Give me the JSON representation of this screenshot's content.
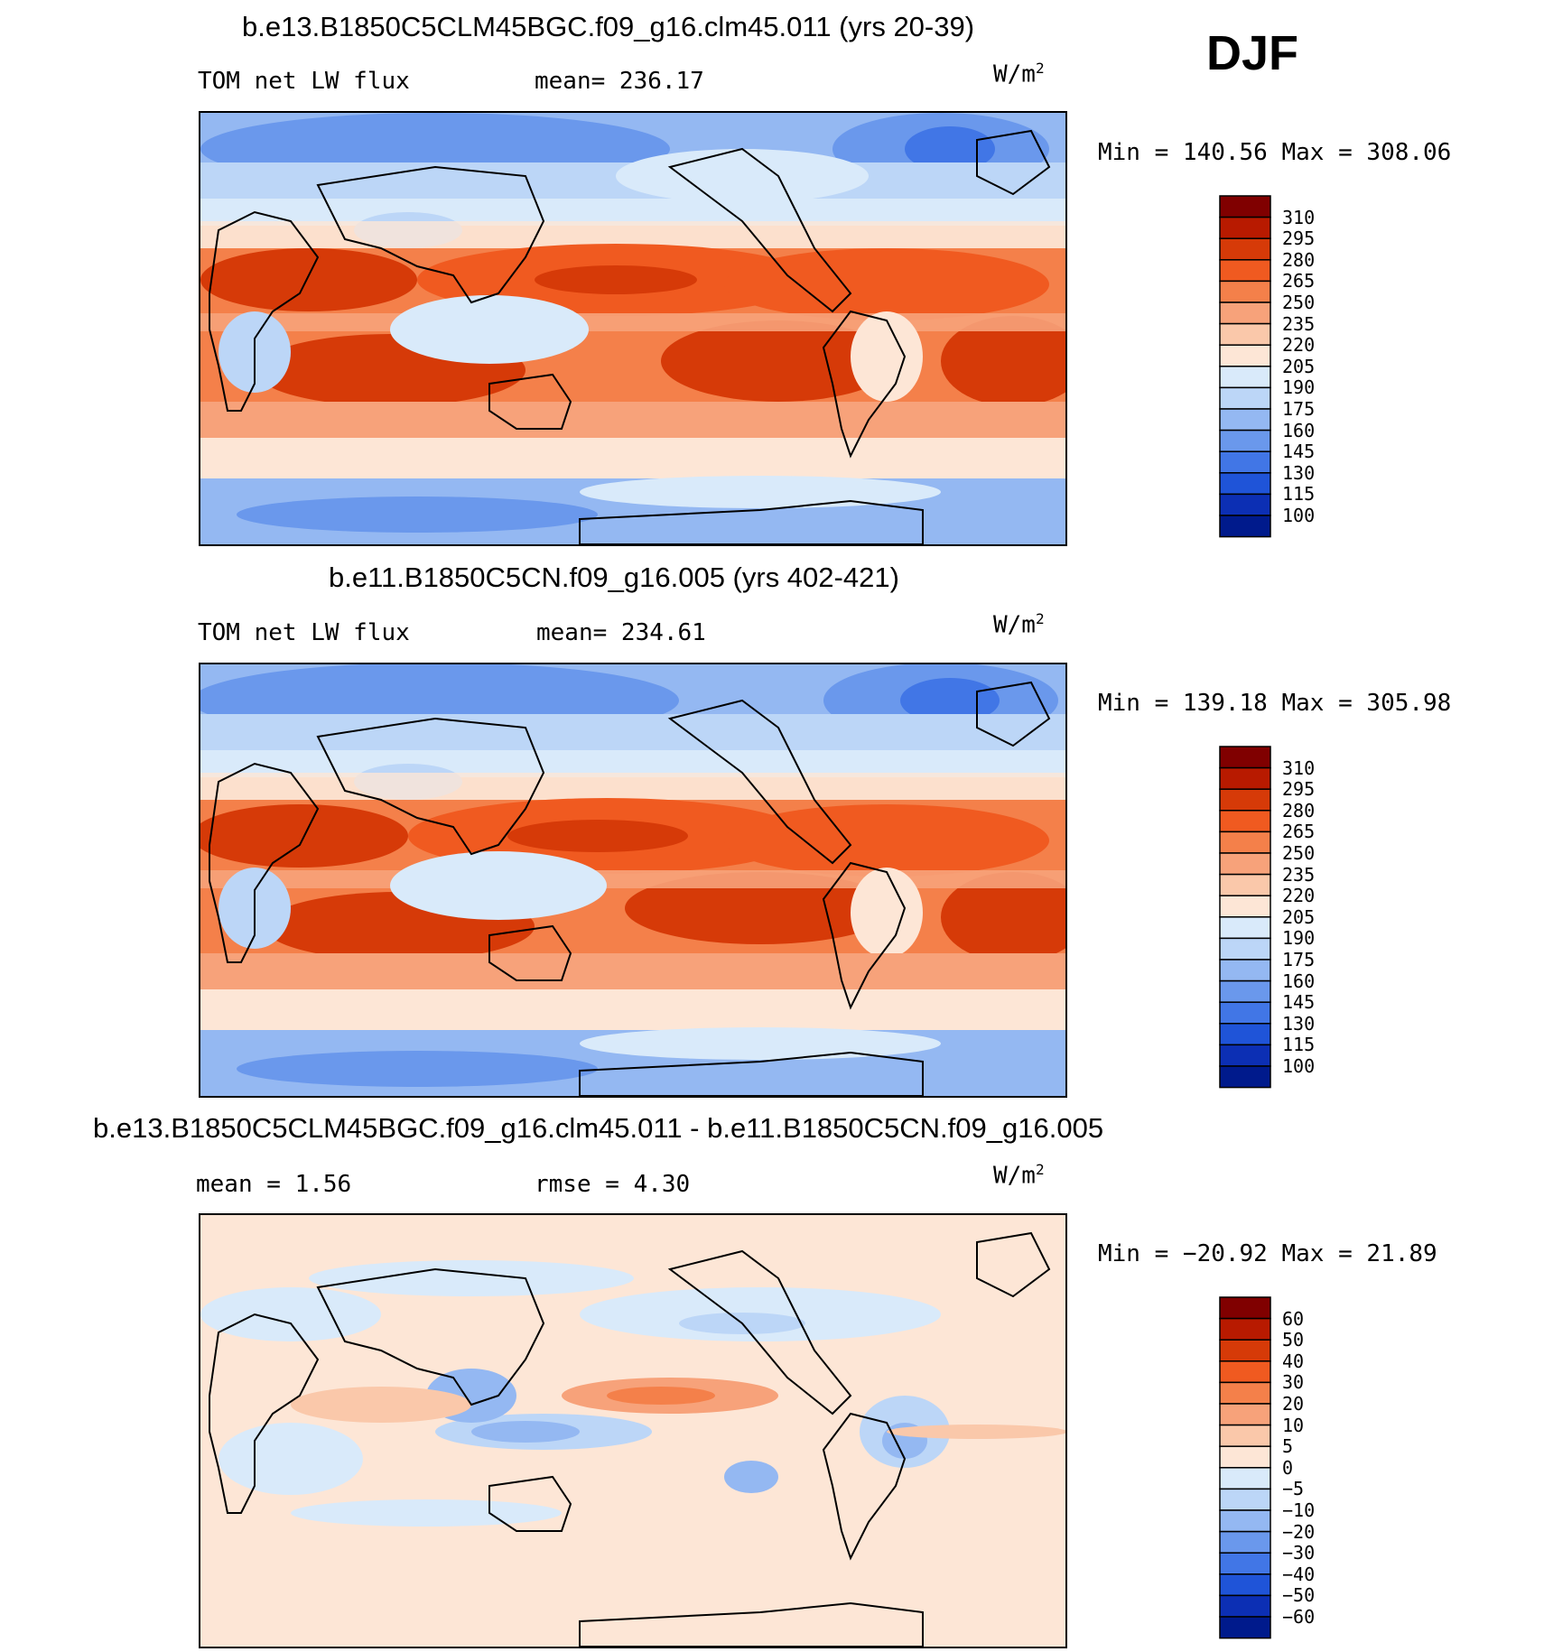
{
  "season": "DJF",
  "panels": [
    {
      "id": "panel-1",
      "case_title": "b.e13.B1850C5CLM45BGC.f09_g16.clm45.011 (yrs 20-39)",
      "left_text": "TOM net LW flux",
      "center_text": "mean= 236.17",
      "units_base": "W/m",
      "units_exp": "2",
      "minmax": "Min = 140.56 Max = 308.06"
    },
    {
      "id": "panel-2",
      "case_title": "b.e11.B1850C5CN.f09_g16.005 (yrs 402-421)",
      "left_text": "TOM net LW flux",
      "center_text": "mean= 234.61",
      "units_base": "W/m",
      "units_exp": "2",
      "minmax": "Min = 139.18 Max = 305.98"
    },
    {
      "id": "panel-3",
      "case_title": "b.e13.B1850C5CLM45BGC.f09_g16.clm45.011 - b.e11.B1850C5CN.f09_g16.005",
      "left_text": "mean =    1.56",
      "center_text": "rmse =    4.30",
      "units_base": "W/m",
      "units_exp": "2",
      "minmax": "Min = −20.92 Max =   21.89"
    }
  ],
  "colorbars": {
    "absolute": {
      "labels": [
        "310",
        "295",
        "280",
        "265",
        "250",
        "235",
        "220",
        "205",
        "190",
        "175",
        "160",
        "145",
        "130",
        "115",
        "100"
      ],
      "colors": [
        "#800000",
        "#b81a00",
        "#d63a08",
        "#f05a20",
        "#f4804a",
        "#f7a27a",
        "#fac8aa",
        "#fde6d6",
        "#d9eafa",
        "#bcd6f7",
        "#94b8f2",
        "#6a98ec",
        "#4176e6",
        "#1f54d8",
        "#0c2fb4",
        "#001a8c"
      ]
    },
    "difference": {
      "labels": [
        "60",
        "50",
        "40",
        "30",
        "20",
        "10",
        "5",
        "0",
        "−5",
        "−10",
        "−20",
        "−30",
        "−40",
        "−50",
        "−60"
      ],
      "colors": [
        "#800000",
        "#b81a00",
        "#d63a08",
        "#f05a20",
        "#f4804a",
        "#f7a27a",
        "#fac8aa",
        "#fde6d6",
        "#d9eafa",
        "#bcd6f7",
        "#94b8f2",
        "#6a98ec",
        "#4176e6",
        "#1f54d8",
        "#0c2fb4",
        "#001a8c"
      ]
    }
  },
  "chart_data": [
    {
      "type": "heatmap",
      "title": "b.e13.B1850C5CLM45BGC.f09_g16.clm45.011 (yrs 20-39)",
      "variable": "TOM net LW flux",
      "units": "W/m2",
      "mean": 236.17,
      "min": 140.56,
      "max": 308.06,
      "contour_levels": [
        100,
        115,
        130,
        145,
        160,
        175,
        190,
        205,
        220,
        235,
        250,
        265,
        280,
        295,
        310
      ]
    },
    {
      "type": "heatmap",
      "title": "b.e11.B1850C5CN.f09_g16.005 (yrs 402-421)",
      "variable": "TOM net LW flux",
      "units": "W/m2",
      "mean": 234.61,
      "min": 139.18,
      "max": 305.98,
      "contour_levels": [
        100,
        115,
        130,
        145,
        160,
        175,
        190,
        205,
        220,
        235,
        250,
        265,
        280,
        295,
        310
      ]
    },
    {
      "type": "heatmap",
      "title": "b.e13.B1850C5CLM45BGC.f09_g16.clm45.011 - b.e11.B1850C5CN.f09_g16.005",
      "units": "W/m2",
      "mean": 1.56,
      "rmse": 4.3,
      "min": -20.92,
      "max": 21.89,
      "contour_levels": [
        -60,
        -50,
        -40,
        -30,
        -20,
        -10,
        -5,
        0,
        5,
        10,
        20,
        30,
        40,
        50,
        60
      ]
    }
  ]
}
